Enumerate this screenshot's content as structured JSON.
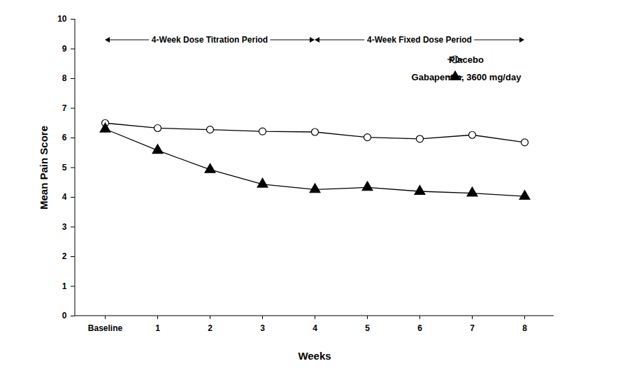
{
  "chart_data": {
    "type": "line",
    "x_label": "Weeks",
    "y_label": "Mean Pain Score",
    "categories": [
      "Baseline",
      "1",
      "2",
      "3",
      "4",
      "5",
      "6",
      "7",
      "8"
    ],
    "series": [
      {
        "name": "Placebo",
        "color": "#000000",
        "marker": "open_circle",
        "line_style": "solid",
        "values": [
          6.5,
          6.33,
          6.28,
          6.22,
          6.2,
          6.02,
          5.97,
          6.1,
          5.85
        ]
      },
      {
        "name": "Gabapentin, 3600 mg/day",
        "color": "#000000",
        "marker": "triangle",
        "line_style": "solid",
        "values": [
          6.3,
          5.58,
          4.93,
          4.44,
          4.26,
          4.33,
          4.2,
          4.14,
          4.03
        ]
      }
    ],
    "ylim": [
      0,
      10
    ],
    "yticks": [
      0,
      1,
      2,
      3,
      4,
      5,
      6,
      7,
      8,
      9,
      10
    ],
    "grid": false,
    "legend": "top-right",
    "annotations": [
      {
        "text": "4-Week Dose Titration Period",
        "from": "Baseline",
        "to": "4"
      },
      {
        "text": "4-Week Fixed Dose Period",
        "from": "4",
        "to": "8"
      }
    ]
  }
}
